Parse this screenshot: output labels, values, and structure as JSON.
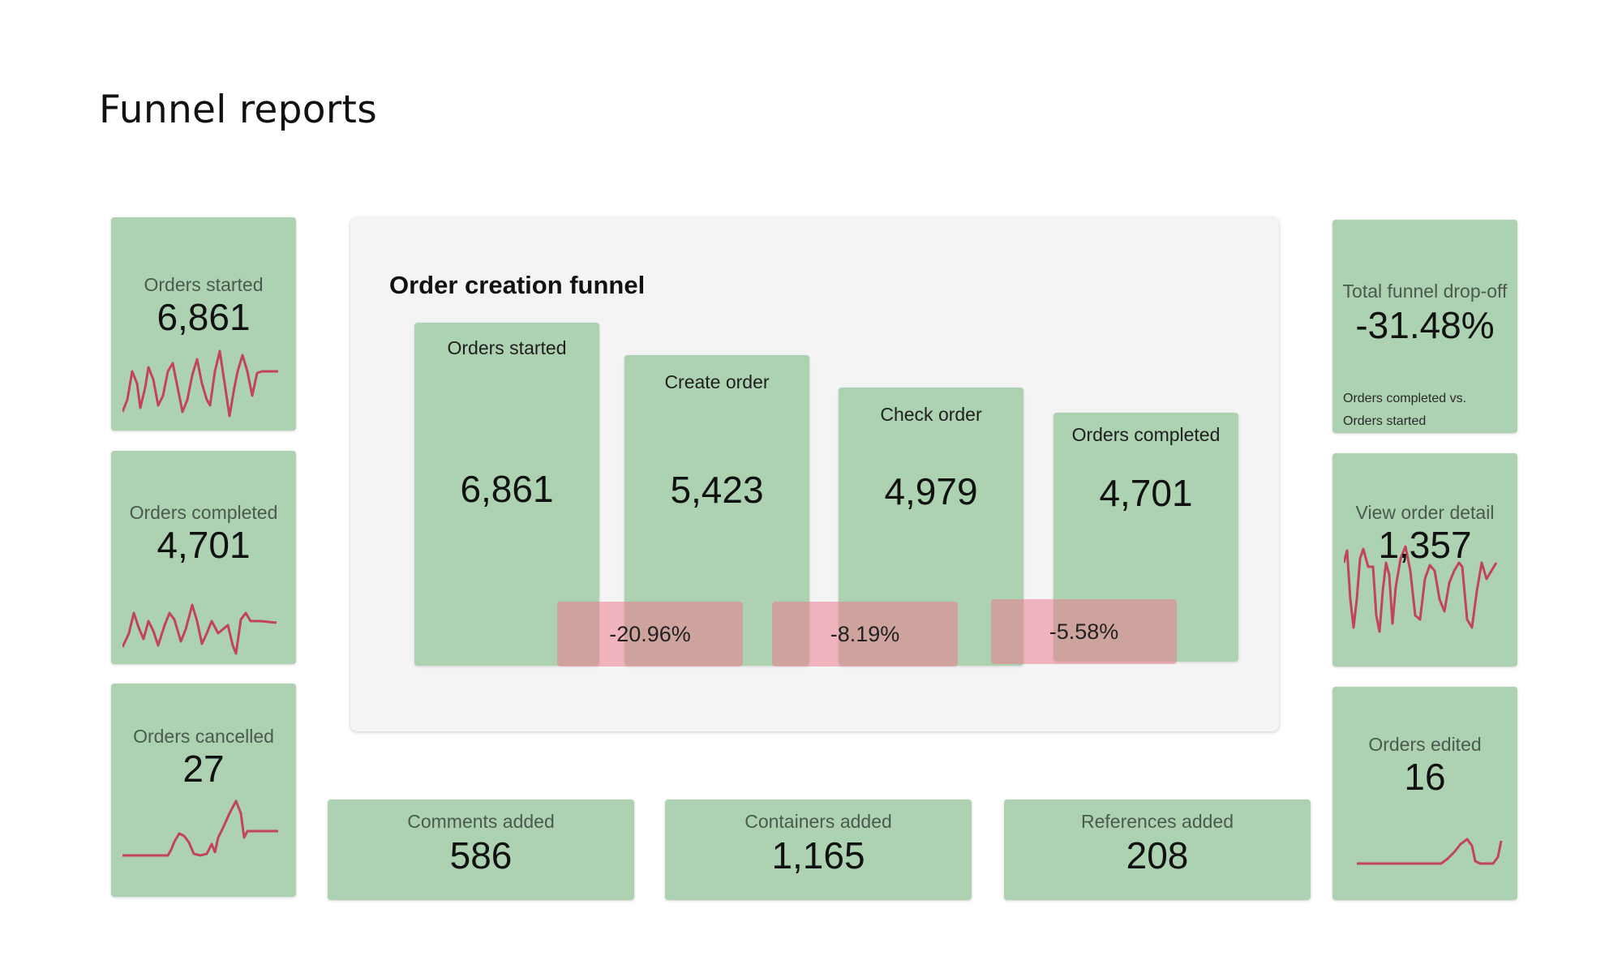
{
  "page_title": "Funnel reports",
  "colors": {
    "card_bg": "#acd2b2",
    "sparkline": "#c2435b",
    "dropoff_overlay": "#ee788c",
    "panel_bg": "#f4f4f4"
  },
  "left_cards": [
    {
      "label": "Orders started",
      "value": "6,861"
    },
    {
      "label": "Orders completed",
      "value": "4,701"
    },
    {
      "label": "Orders cancelled",
      "value": "27"
    }
  ],
  "bottom_cards": [
    {
      "label": "Comments added",
      "value": "586"
    },
    {
      "label": "Containers added",
      "value": "1,165"
    },
    {
      "label": "References added",
      "value": "208"
    }
  ],
  "right_cards": [
    {
      "label": "Total funnel drop-off",
      "value": "-31.48%",
      "note_line1": "Orders completed vs.",
      "note_line2": "Orders started"
    },
    {
      "label": "View order detail",
      "value": "1,357"
    },
    {
      "label": "Orders edited",
      "value": "16"
    }
  ],
  "funnel": {
    "title": "Order creation funnel",
    "steps": [
      {
        "label": "Orders started",
        "value": "6,861"
      },
      {
        "label": "Create order",
        "value": "5,423"
      },
      {
        "label": "Check order",
        "value": "4,979"
      },
      {
        "label": "Orders completed",
        "value": "4,701"
      }
    ],
    "dropoffs": [
      "-20.96%",
      "-8.19%",
      "-5.58%"
    ]
  }
}
